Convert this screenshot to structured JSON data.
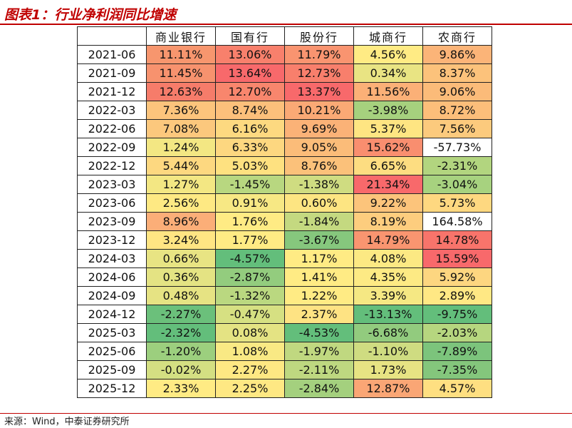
{
  "title": "图表1：行业净利润同比增速",
  "table": {
    "columns": [
      "商业银行",
      "国有行",
      "股份行",
      "城商行",
      "农商行"
    ],
    "rows": [
      {
        "label": "2021-06",
        "values": [
          "11.11%",
          "13.06%",
          "11.79%",
          "4.56%",
          "9.86%"
        ],
        "colors": [
          "#f7966e",
          "#f8806c",
          "#f99470",
          "#ffeb84",
          "#fbb478"
        ]
      },
      {
        "label": "2021-09",
        "values": [
          "11.45%",
          "13.64%",
          "12.73%",
          "0.34%",
          "8.37%"
        ],
        "colors": [
          "#f7926e",
          "#f8696b",
          "#f87f6c",
          "#e9e483",
          "#fcc27b"
        ]
      },
      {
        "label": "2021-12",
        "values": [
          "12.63%",
          "12.70%",
          "13.37%",
          "11.56%",
          "9.06%"
        ],
        "colors": [
          "#f67c6a",
          "#f8866d",
          "#f8696b",
          "#fbb077",
          "#fbbb79"
        ]
      },
      {
        "label": "2022-03",
        "values": [
          "7.36%",
          "8.74%",
          "10.21%",
          "-3.98%",
          "8.72%"
        ],
        "colors": [
          "#fcc47c",
          "#fcc07b",
          "#faa975",
          "#a6d17e",
          "#fcbe7a"
        ]
      },
      {
        "label": "2022-06",
        "values": [
          "7.08%",
          "6.16%",
          "9.69%",
          "5.37%",
          "7.56%"
        ],
        "colors": [
          "#fcc87d",
          "#fdd980",
          "#fbb277",
          "#fee582",
          "#fcca7d"
        ]
      },
      {
        "label": "2022-09",
        "values": [
          "1.24%",
          "6.33%",
          "9.05%",
          "15.62%",
          "-57.73%"
        ],
        "colors": [
          "#f3e783",
          "#fdd780",
          "#fbbc79",
          "#f98e6f",
          "#ffffff"
        ]
      },
      {
        "label": "2022-12",
        "values": [
          "5.44%",
          "5.03%",
          "8.76%",
          "6.65%",
          "-2.31%"
        ],
        "colors": [
          "#fdd880",
          "#fee180",
          "#fbc17a",
          "#fddd81",
          "#b2d57f"
        ]
      },
      {
        "label": "2023-03",
        "values": [
          "1.27%",
          "-1.45%",
          "-1.38%",
          "21.34%",
          "-3.04%"
        ],
        "colors": [
          "#f3e783",
          "#b8d780",
          "#cfdc81",
          "#f8696b",
          "#a7d27f"
        ]
      },
      {
        "label": "2023-06",
        "values": [
          "2.56%",
          "0.91%",
          "0.60%",
          "9.22%",
          "5.73%"
        ],
        "colors": [
          "#fee983",
          "#f7e884",
          "#fde582",
          "#fcc47b",
          "#fed880"
        ]
      },
      {
        "label": "2023-09",
        "values": [
          "8.96%",
          "1.76%",
          "-1.84%",
          "8.19%",
          "164.58%"
        ],
        "colors": [
          "#fbae78",
          "#ffeb84",
          "#c4d980",
          "#fdcd7e",
          "#ffffff"
        ]
      },
      {
        "label": "2023-12",
        "values": [
          "3.24%",
          "1.77%",
          "-3.67%",
          "14.79%",
          "14.78%"
        ],
        "colors": [
          "#ffe583",
          "#ffeb84",
          "#86c77d",
          "#f99570",
          "#f8746b"
        ]
      },
      {
        "label": "2024-03",
        "values": [
          "0.66%",
          "-4.57%",
          "1.17%",
          "4.08%",
          "15.59%"
        ],
        "colors": [
          "#e8e483",
          "#63be7b",
          "#ffeb84",
          "#fce983",
          "#f8696b"
        ]
      },
      {
        "label": "2024-06",
        "values": [
          "0.36%",
          "-2.87%",
          "1.41%",
          "4.35%",
          "5.92%"
        ],
        "colors": [
          "#e4e383",
          "#93cc7e",
          "#ffeb84",
          "#fdea84",
          "#fdd680"
        ]
      },
      {
        "label": "2024-09",
        "values": [
          "0.48%",
          "-1.32%",
          "1.22%",
          "3.39%",
          "2.89%"
        ],
        "colors": [
          "#e6e383",
          "#bad880",
          "#ffeb84",
          "#f5e883",
          "#ffe884"
        ]
      },
      {
        "label": "2024-12",
        "values": [
          "-2.27%",
          "-0.47%",
          "2.37%",
          "-13.13%",
          "-9.75%"
        ],
        "colors": [
          "#6bc07b",
          "#d6e082",
          "#fee383",
          "#63be7b",
          "#63be7b"
        ]
      },
      {
        "label": "2025-03",
        "values": [
          "-2.32%",
          "0.08%",
          "-4.53%",
          "-6.68%",
          "-2.03%"
        ],
        "colors": [
          "#63be7b",
          "#e4e383",
          "#63be7b",
          "#92cb7e",
          "#b6d67f"
        ]
      },
      {
        "label": "2025-06",
        "values": [
          "-1.20%",
          "1.08%",
          "-1.97%",
          "-1.10%",
          "-7.89%"
        ],
        "colors": [
          "#9ccf7e",
          "#f9e984",
          "#c0d880",
          "#cfdc81",
          "#7cc47c"
        ]
      },
      {
        "label": "2025-09",
        "values": [
          "-0.02%",
          "2.27%",
          "-2.11%",
          "1.73%",
          "-7.35%"
        ],
        "colors": [
          "#d4df82",
          "#fee883",
          "#bed880",
          "#e7e383",
          "#84c67c"
        ]
      },
      {
        "label": "2025-12",
        "values": [
          "2.33%",
          "2.25%",
          "-2.84%",
          "12.87%",
          "4.57%"
        ],
        "colors": [
          "#ffeb84",
          "#fee883",
          "#a4d07e",
          "#faa675",
          "#fedf81"
        ]
      }
    ]
  },
  "source": "来源：Wind，中泰证券研究所"
}
